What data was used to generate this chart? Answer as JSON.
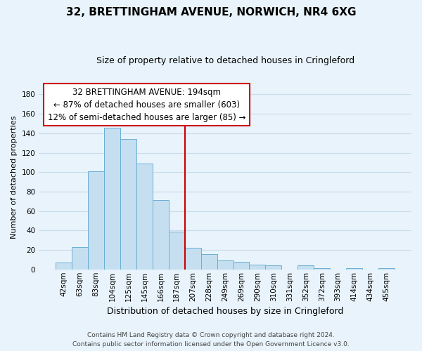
{
  "title": "32, BRETTINGHAM AVENUE, NORWICH, NR4 6XG",
  "subtitle": "Size of property relative to detached houses in Cringleford",
  "xlabel": "Distribution of detached houses by size in Cringleford",
  "ylabel": "Number of detached properties",
  "bar_labels": [
    "42sqm",
    "63sqm",
    "83sqm",
    "104sqm",
    "125sqm",
    "145sqm",
    "166sqm",
    "187sqm",
    "207sqm",
    "228sqm",
    "249sqm",
    "269sqm",
    "290sqm",
    "310sqm",
    "331sqm",
    "352sqm",
    "372sqm",
    "393sqm",
    "414sqm",
    "434sqm",
    "455sqm"
  ],
  "bar_values": [
    7,
    23,
    101,
    146,
    134,
    109,
    71,
    39,
    22,
    16,
    9,
    8,
    5,
    4,
    0,
    4,
    1,
    0,
    1,
    0,
    1
  ],
  "bar_color": "#c5dff0",
  "bar_edge_color": "#6aafd4",
  "vline_color": "#cc0000",
  "vline_x_index": 7.5,
  "ylim": [
    0,
    190
  ],
  "yticks": [
    0,
    20,
    40,
    60,
    80,
    100,
    120,
    140,
    160,
    180
  ],
  "annotation_title": "32 BRETTINGHAM AVENUE: 194sqm",
  "annotation_line1": "← 87% of detached houses are smaller (603)",
  "annotation_line2": "12% of semi-detached houses are larger (85) →",
  "annotation_box_color": "#ffffff",
  "annotation_box_edge": "#cc0000",
  "footer_line1": "Contains HM Land Registry data © Crown copyright and database right 2024.",
  "footer_line2": "Contains public sector information licensed under the Open Government Licence v3.0.",
  "background_color": "#e8f3fb",
  "grid_color": "#c8dcea",
  "title_fontsize": 11,
  "subtitle_fontsize": 9,
  "ylabel_fontsize": 8,
  "xlabel_fontsize": 9,
  "tick_fontsize": 7.5,
  "footer_fontsize": 6.5
}
